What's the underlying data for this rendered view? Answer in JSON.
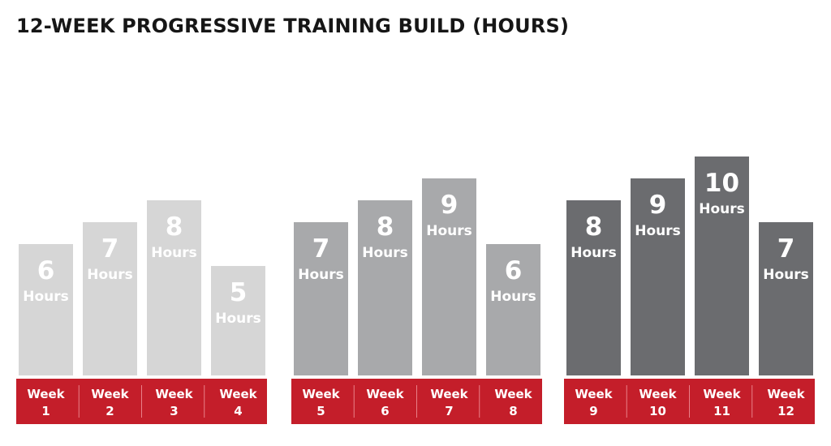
{
  "chart_data": {
    "type": "bar",
    "title": "12-WEEK PROGRESSIVE TRAINING BUILD (HOURS)",
    "unit_label": "Hours",
    "categories": [
      "Week 1",
      "Week 2",
      "Week 3",
      "Week 4",
      "Week 5",
      "Week 6",
      "Week 7",
      "Week 8",
      "Week 9",
      "Week 10",
      "Week 11",
      "Week 12"
    ],
    "values": [
      6,
      7,
      8,
      5,
      7,
      8,
      9,
      6,
      8,
      9,
      10,
      7
    ],
    "blocks": [
      {
        "weeks": [
          "1",
          "2",
          "3",
          "4"
        ],
        "values": [
          6,
          7,
          8,
          5
        ],
        "color": "#d6d6d6"
      },
      {
        "weeks": [
          "5",
          "6",
          "7",
          "8"
        ],
        "values": [
          7,
          8,
          9,
          6
        ],
        "color": "#a8a9ab"
      },
      {
        "weeks": [
          "9",
          "10",
          "11",
          "12"
        ],
        "values": [
          8,
          9,
          10,
          7
        ],
        "color": "#6b6c6f"
      }
    ],
    "week_word": "Week",
    "label_band_color": "#c41e2a",
    "grid": false,
    "legend": "none"
  }
}
